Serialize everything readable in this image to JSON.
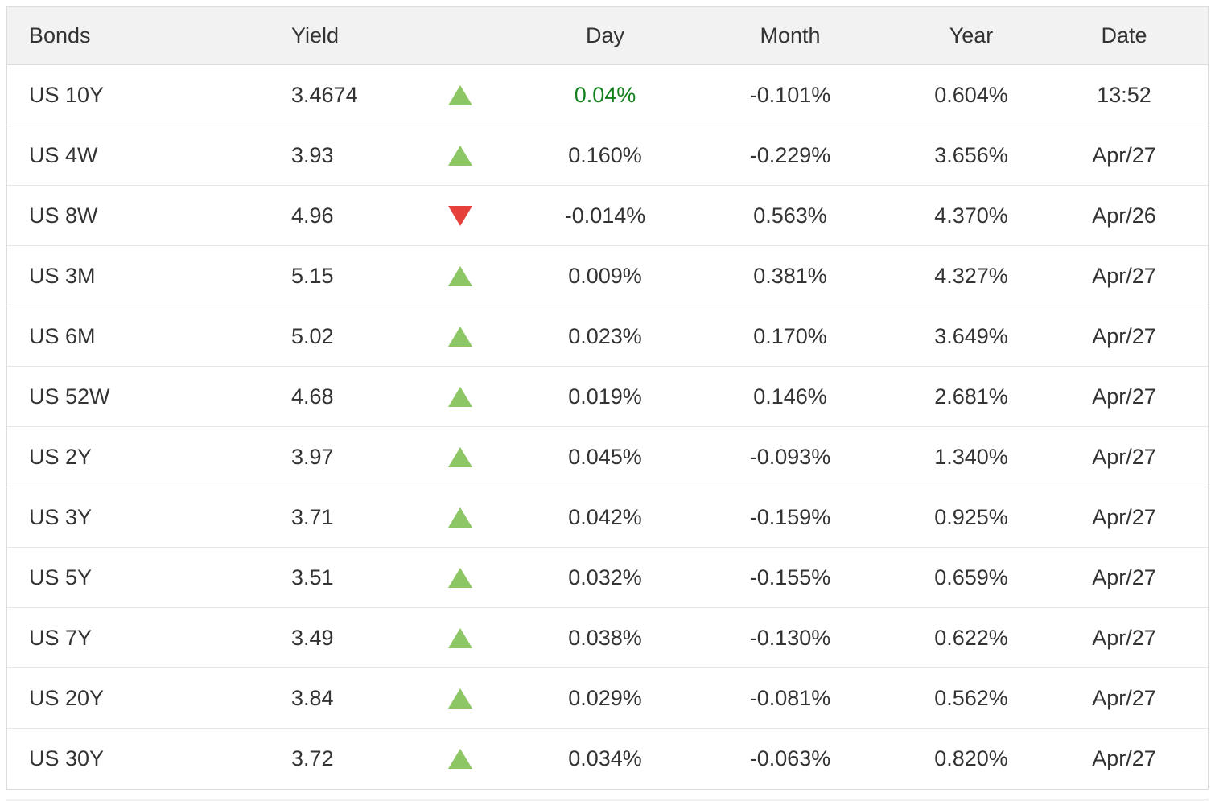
{
  "table": {
    "headers": [
      "Bonds",
      "Yield",
      "Day",
      "Month",
      "Year",
      "Date"
    ],
    "rows": [
      {
        "bond": "US 10Y",
        "yield": "3.4674",
        "direction": "up",
        "day": "0.04%",
        "day_green": true,
        "month": "-0.101%",
        "year": "0.604%",
        "date": "13:52"
      },
      {
        "bond": "US 4W",
        "yield": "3.93",
        "direction": "up",
        "day": "0.160%",
        "day_green": false,
        "month": "-0.229%",
        "year": "3.656%",
        "date": "Apr/27"
      },
      {
        "bond": "US 8W",
        "yield": "4.96",
        "direction": "down",
        "day": "-0.014%",
        "day_green": false,
        "month": "0.563%",
        "year": "4.370%",
        "date": "Apr/26"
      },
      {
        "bond": "US 3M",
        "yield": "5.15",
        "direction": "up",
        "day": "0.009%",
        "day_green": false,
        "month": "0.381%",
        "year": "4.327%",
        "date": "Apr/27"
      },
      {
        "bond": "US 6M",
        "yield": "5.02",
        "direction": "up",
        "day": "0.023%",
        "day_green": false,
        "month": "0.170%",
        "year": "3.649%",
        "date": "Apr/27"
      },
      {
        "bond": "US 52W",
        "yield": "4.68",
        "direction": "up",
        "day": "0.019%",
        "day_green": false,
        "month": "0.146%",
        "year": "2.681%",
        "date": "Apr/27"
      },
      {
        "bond": "US 2Y",
        "yield": "3.97",
        "direction": "up",
        "day": "0.045%",
        "day_green": false,
        "month": "-0.093%",
        "year": "1.340%",
        "date": "Apr/27"
      },
      {
        "bond": "US 3Y",
        "yield": "3.71",
        "direction": "up",
        "day": "0.042%",
        "day_green": false,
        "month": "-0.159%",
        "year": "0.925%",
        "date": "Apr/27"
      },
      {
        "bond": "US 5Y",
        "yield": "3.51",
        "direction": "up",
        "day": "0.032%",
        "day_green": false,
        "month": "-0.155%",
        "year": "0.659%",
        "date": "Apr/27"
      },
      {
        "bond": "US 7Y",
        "yield": "3.49",
        "direction": "up",
        "day": "0.038%",
        "day_green": false,
        "month": "-0.130%",
        "year": "0.622%",
        "date": "Apr/27"
      },
      {
        "bond": "US 20Y",
        "yield": "3.84",
        "direction": "up",
        "day": "0.029%",
        "day_green": false,
        "month": "-0.081%",
        "year": "0.562%",
        "date": "Apr/27"
      },
      {
        "bond": "US 30Y",
        "yield": "3.72",
        "direction": "up",
        "day": "0.034%",
        "day_green": false,
        "month": "-0.063%",
        "year": "0.820%",
        "date": "Apr/27"
      }
    ]
  },
  "icons": {
    "up": "triangle-up-icon",
    "down": "triangle-down-icon"
  },
  "colors": {
    "up_triangle": "#8cc665",
    "down_triangle": "#e5413a",
    "positive_day": "#15801e",
    "header_bg": "#f2f2f2",
    "border": "#dcdcdc",
    "row_border": "#e6e6e6",
    "text": "#333333"
  }
}
